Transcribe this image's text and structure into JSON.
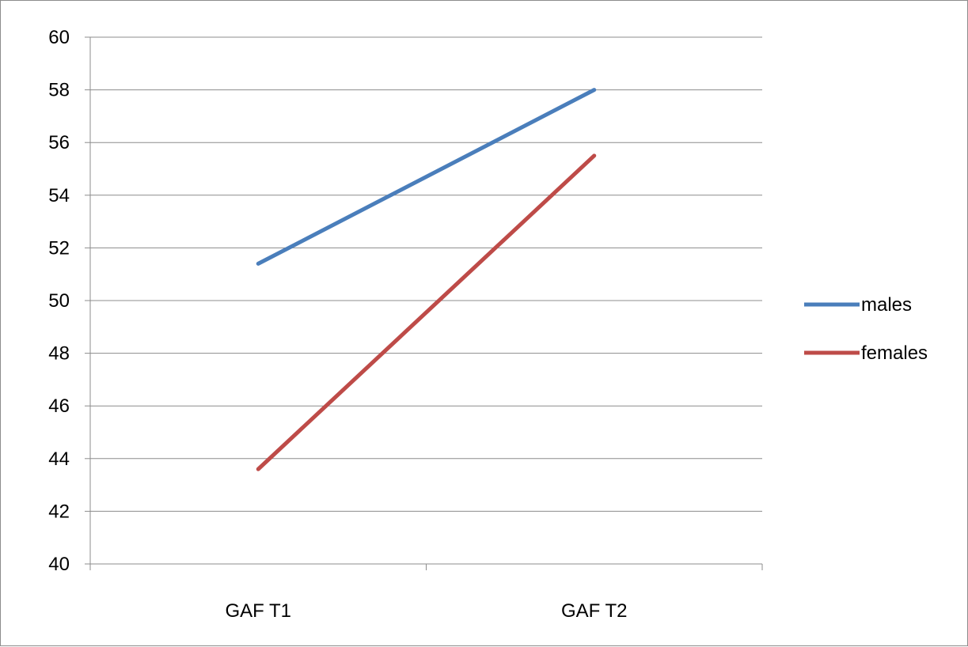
{
  "chart_data": {
    "type": "line",
    "categories": [
      "GAF T1",
      "GAF T2"
    ],
    "series": [
      {
        "name": "males",
        "values": [
          51.4,
          58.0
        ],
        "color": "#4a7ebb"
      },
      {
        "name": "females",
        "values": [
          43.6,
          55.5
        ],
        "color": "#be4b48"
      }
    ],
    "ylim": [
      40,
      60
    ],
    "ytick_step": 2,
    "y_ticks": [
      "40",
      "42",
      "44",
      "46",
      "48",
      "50",
      "52",
      "54",
      "56",
      "58",
      "60"
    ],
    "grid": true,
    "gridline_color": "#8c8c8c",
    "legend_placement": "right"
  }
}
